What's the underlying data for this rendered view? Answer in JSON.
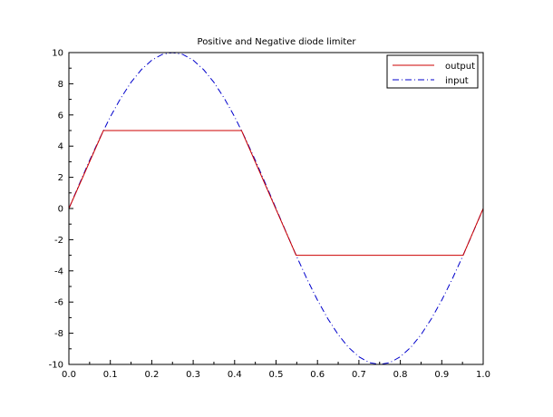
{
  "chart_data": {
    "type": "line",
    "title": "Positive and Negative diode limiter",
    "xlabel": "",
    "ylabel": "",
    "xlim": [
      0.0,
      1.0
    ],
    "ylim": [
      -10,
      10
    ],
    "x_ticks": [
      0.0,
      0.1,
      0.2,
      0.3,
      0.4,
      0.5,
      0.6,
      0.7,
      0.8,
      0.9,
      1.0
    ],
    "x_tick_labels": [
      "0.0",
      "0.1",
      "0.2",
      "0.3",
      "0.4",
      "0.5",
      "0.6",
      "0.7",
      "0.8",
      "0.9",
      "1.0"
    ],
    "y_ticks": [
      -10,
      -8,
      -6,
      -4,
      -2,
      0,
      2,
      4,
      6,
      8,
      10
    ],
    "y_tick_labels": [
      "-10",
      "-8",
      "-6",
      "-4",
      "-2",
      "0",
      "2",
      "4",
      "6",
      "8",
      "10"
    ],
    "grid": false,
    "legend_position": "top-right",
    "series": [
      {
        "name": "output",
        "color": "#cc0000",
        "dash": "solid",
        "x": [
          0.0,
          0.0833,
          0.4167,
          0.5485,
          0.9515,
          1.0
        ],
        "y": [
          0,
          5,
          5,
          -3,
          -3,
          0
        ]
      },
      {
        "name": "input",
        "color": "#0000cc",
        "dash": "dash-dot",
        "x": [
          0.0,
          0.025,
          0.05,
          0.075,
          0.1,
          0.125,
          0.15,
          0.175,
          0.2,
          0.225,
          0.25,
          0.275,
          0.3,
          0.325,
          0.35,
          0.375,
          0.4,
          0.425,
          0.45,
          0.475,
          0.5,
          0.525,
          0.55,
          0.575,
          0.6,
          0.625,
          0.65,
          0.675,
          0.7,
          0.725,
          0.75,
          0.775,
          0.8,
          0.825,
          0.85,
          0.875,
          0.9,
          0.925,
          0.95,
          0.975,
          1.0
        ],
        "y": [
          0,
          1.56,
          3.09,
          4.54,
          5.88,
          7.07,
          8.09,
          8.91,
          9.51,
          9.88,
          10,
          9.88,
          9.51,
          8.91,
          8.09,
          7.07,
          5.88,
          4.54,
          3.09,
          1.56,
          0,
          -1.56,
          -3.09,
          -4.54,
          -5.88,
          -7.07,
          -8.09,
          -8.91,
          -9.51,
          -9.88,
          -10,
          -9.88,
          -9.51,
          -8.91,
          -8.09,
          -7.07,
          -5.88,
          -4.54,
          -3.09,
          -1.56,
          0
        ]
      }
    ]
  }
}
